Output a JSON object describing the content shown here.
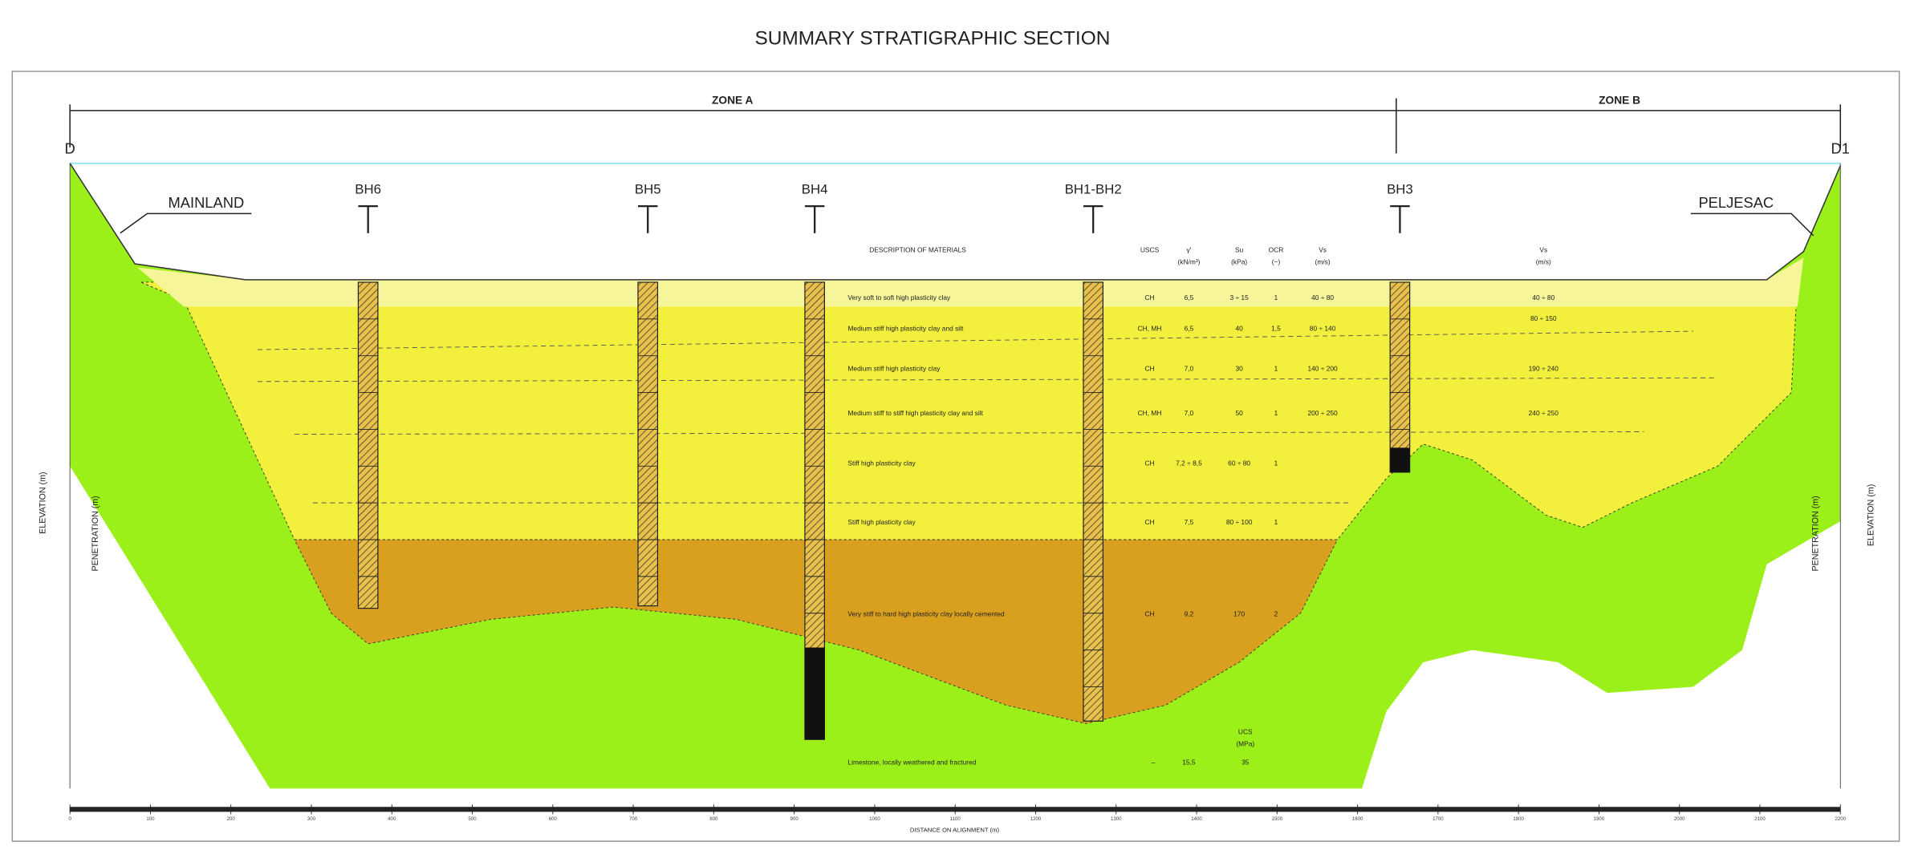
{
  "title": "SUMMARY STRATIGRAPHIC SECTION",
  "zones": [
    "ZONE A",
    "ZONE B"
  ],
  "section_ends": [
    "D",
    "D1"
  ],
  "places": [
    "MAINLAND",
    "PELJESAC"
  ],
  "boreholes": [
    "BH6",
    "BH5",
    "BH4",
    "BH1-BH2",
    "BH3"
  ],
  "table": {
    "headers": [
      "DESCRIPTION OF MATERIALS",
      "USCS",
      "γ'",
      "(kN/m³)",
      "Su",
      "(kPa)",
      "OCR",
      "(−)",
      "Vs",
      "(m/s)"
    ],
    "rows": [
      [
        "Very soft to soft high plasticity clay",
        "CH",
        "6,5",
        "3 ÷ 15",
        "1",
        "40 ÷ 80"
      ],
      [
        "Medium stiff high plasticity clay and silt",
        "CH, MH",
        "6,5",
        "40",
        "1,5",
        "80 ÷ 140"
      ],
      [
        "Medium stiff high plasticity clay",
        "CH",
        "7,0",
        "30",
        "1",
        "140 ÷ 200"
      ],
      [
        "Medium stiff to stiff high plasticity clay and silt",
        "CH, MH",
        "7,0",
        "50",
        "1",
        "200 ÷ 250"
      ],
      [
        "Stiff high plasticity clay",
        "CH",
        "7,2 ÷ 8,5",
        "60 ÷ 80",
        "1",
        ""
      ],
      [
        "Stiff high plasticity clay",
        "CH",
        "7,5",
        "80 ÷ 100",
        "1",
        ""
      ],
      [
        "Very stiff to hard high plasticity clay locally cemented",
        "CH",
        "9,2",
        "170",
        "2",
        ""
      ]
    ],
    "ucs_header": [
      "UCS",
      "(MPa)"
    ],
    "rock_row": [
      "Limestone, locally weathered and fractured",
      "–",
      "15,5",
      "35"
    ]
  },
  "zone_b": {
    "headers": [
      "Vs",
      "(m/s)"
    ],
    "vs": [
      "40 ÷ 80",
      "80 ÷ 150",
      "190 ÷ 240",
      "240 ÷ 250"
    ]
  },
  "axis_labels": {
    "elevation": "ELEVATION (m)",
    "penetration": "PENETRATION (m)",
    "distance": "DISTANCE ON ALIGNMENT (m)"
  },
  "distance_ticks": [
    0,
    100,
    200,
    300,
    400,
    500,
    600,
    700,
    800,
    900,
    1000,
    1100,
    1200,
    1300,
    1400,
    1500,
    1600,
    1700,
    1800,
    1900,
    2000,
    2100,
    2200
  ]
}
